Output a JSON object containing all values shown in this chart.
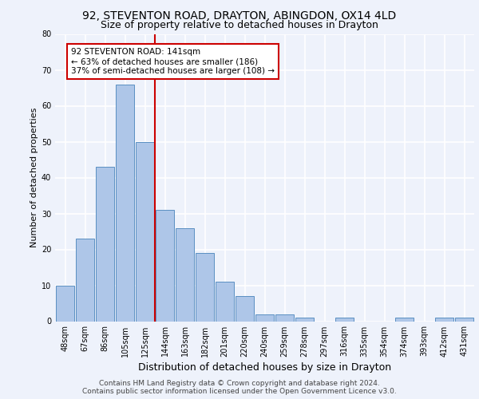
{
  "title1": "92, STEVENTON ROAD, DRAYTON, ABINGDON, OX14 4LD",
  "title2": "Size of property relative to detached houses in Drayton",
  "xlabel": "Distribution of detached houses by size in Drayton",
  "ylabel": "Number of detached properties",
  "bar_labels": [
    "48sqm",
    "67sqm",
    "86sqm",
    "105sqm",
    "125sqm",
    "144sqm",
    "163sqm",
    "182sqm",
    "201sqm",
    "220sqm",
    "240sqm",
    "259sqm",
    "278sqm",
    "297sqm",
    "316sqm",
    "335sqm",
    "354sqm",
    "374sqm",
    "393sqm",
    "412sqm",
    "431sqm"
  ],
  "bar_values": [
    10,
    23,
    43,
    66,
    50,
    31,
    26,
    19,
    11,
    7,
    2,
    2,
    1,
    0,
    1,
    0,
    0,
    1,
    0,
    1,
    1
  ],
  "bar_color": "#aec6e8",
  "bar_edge_color": "#5a8fc2",
  "vline_color": "#cc0000",
  "annotation_text": "92 STEVENTON ROAD: 141sqm\n← 63% of detached houses are smaller (186)\n37% of semi-detached houses are larger (108) →",
  "annotation_box_color": "#ffffff",
  "annotation_box_edge": "#cc0000",
  "ylim": [
    0,
    80
  ],
  "yticks": [
    0,
    10,
    20,
    30,
    40,
    50,
    60,
    70,
    80
  ],
  "footer1": "Contains HM Land Registry data © Crown copyright and database right 2024.",
  "footer2": "Contains public sector information licensed under the Open Government Licence v3.0.",
  "bg_color": "#eef2fb",
  "plot_bg_color": "#eef2fb",
  "grid_color": "#ffffff",
  "title1_fontsize": 10,
  "title2_fontsize": 9,
  "xlabel_fontsize": 9,
  "ylabel_fontsize": 8,
  "tick_fontsize": 7,
  "annotation_fontsize": 7.5,
  "footer_fontsize": 6.5
}
